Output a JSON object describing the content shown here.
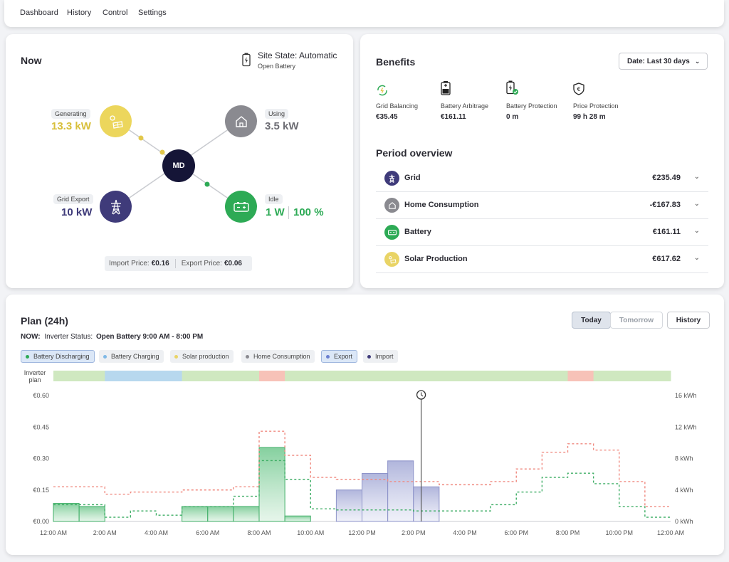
{
  "nav": {
    "items": [
      {
        "label": "Dashboard"
      },
      {
        "label": "History"
      },
      {
        "label": "Control"
      },
      {
        "label": "Settings"
      }
    ]
  },
  "now": {
    "title": "Now",
    "site_state": "Site State: Automatic",
    "site_state_sub": "Open Battery",
    "center_label": "MD",
    "generating": {
      "label": "Generating",
      "value": "13.3 kW",
      "color": "#d8bf3a"
    },
    "using": {
      "label": "Using",
      "value": "3.5 kW",
      "color": "#6d6d74"
    },
    "grid_export": {
      "label": "Grid Export",
      "value": "10 kW",
      "color": "#3f3b7a"
    },
    "idle": {
      "label": "Idle",
      "power": "1 W",
      "soc": "100 %",
      "color": "#2daa55"
    },
    "import_price_label": "Import Price:",
    "import_price": "€0.16",
    "export_price_label": "Export Price:",
    "export_price": "€0.06"
  },
  "benefits": {
    "title": "Benefits",
    "date_selector": "Date: Last 30 days",
    "items": [
      {
        "label": "Grid Balancing",
        "value": "€35.45",
        "icon": "grid-balancing-icon"
      },
      {
        "label": "Battery Arbitrage",
        "value": "€161.11",
        "icon": "battery-arbitrage-icon"
      },
      {
        "label": "Battery Protection",
        "value": "0 m",
        "icon": "battery-protection-icon"
      },
      {
        "label": "Price Protection",
        "value": "99 h 28 m",
        "icon": "price-protection-icon"
      }
    ],
    "period_title": "Period overview",
    "period_rows": [
      {
        "name": "Grid",
        "value": "€235.49",
        "color": "#3f3b7a"
      },
      {
        "name": "Home Consumption",
        "value": "-€167.83",
        "color": "#8a8a90"
      },
      {
        "name": "Battery",
        "value": "€161.11",
        "color": "#2daa55"
      },
      {
        "name": "Solar Production",
        "value": "€617.62",
        "color": "#e9d466"
      }
    ]
  },
  "plan": {
    "title": "Plan (24h)",
    "status_prefix": "NOW:",
    "status_label": "Inverter Status:",
    "status_value": "Open Battery 9:00 AM - 8:00 PM",
    "btn_today": "Today",
    "btn_tomorrow": "Tomorrow",
    "btn_history": "History",
    "legend": [
      {
        "label": "Battery Discharging",
        "color": "#2daa55",
        "active": true
      },
      {
        "label": "Battery Charging",
        "color": "#7fb9e6",
        "active": false
      },
      {
        "label": "Solar production",
        "color": "#e9d466",
        "active": false
      },
      {
        "label": "Home Consumption",
        "color": "#8a8a90",
        "active": false
      },
      {
        "label": "Export",
        "color": "#6a7fd0",
        "active": true
      },
      {
        "label": "Import",
        "color": "#3f3b7a",
        "active": false
      }
    ],
    "inverter_plan_label_1": "Inverter",
    "inverter_plan_label_2": "plan"
  },
  "chart_data": {
    "type": "bar",
    "x_ticks": [
      "12:00 AM",
      "2:00 AM",
      "4:00 AM",
      "6:00 AM",
      "8:00 AM",
      "10:00 AM",
      "12:00 PM",
      "2:00 PM",
      "4:00 PM",
      "6:00 PM",
      "8:00 PM",
      "10:00 PM",
      "12:00 AM"
    ],
    "y_left_ticks": [
      "€0.00",
      "€0.15",
      "€0.30",
      "€0.45",
      "€0.60"
    ],
    "y_right_ticks": [
      "0 kWh",
      "4 kWh",
      "8 kWh",
      "12 kWh",
      "16 kWh"
    ],
    "ylim_left": [
      0,
      0.6
    ],
    "ylim_right": [
      0,
      16
    ],
    "hours": [
      0,
      1,
      2,
      3,
      4,
      5,
      6,
      7,
      8,
      9,
      10,
      11,
      12,
      13,
      14,
      15,
      16,
      17,
      18,
      19,
      20,
      21,
      22,
      23
    ],
    "import_price": [
      0.165,
      0.165,
      0.13,
      0.14,
      0.14,
      0.15,
      0.15,
      0.165,
      0.43,
      0.315,
      0.21,
      0.2,
      0.2,
      0.19,
      0.19,
      0.175,
      0.175,
      0.19,
      0.25,
      0.33,
      0.37,
      0.34,
      0.19,
      0.07
    ],
    "export_price": [
      0.08,
      0.08,
      0.02,
      0.05,
      0.03,
      0.07,
      0.07,
      0.12,
      0.29,
      0.2,
      0.06,
      0.055,
      0.055,
      0.055,
      0.05,
      0.05,
      0.05,
      0.08,
      0.14,
      0.21,
      0.23,
      0.18,
      0.07,
      0.02
    ],
    "series": [
      {
        "name": "Battery Discharging",
        "unit": "kWh",
        "values": [
          2.3,
          1.9,
          0,
          0,
          0,
          1.9,
          1.9,
          1.9,
          9.4,
          0.7,
          0,
          0,
          0,
          0,
          0,
          0,
          0,
          0,
          0,
          0,
          0,
          0,
          0,
          0
        ]
      },
      {
        "name": "Export",
        "unit": "kWh",
        "values": [
          0,
          0,
          0,
          0,
          0,
          0,
          0,
          0,
          0,
          0,
          0,
          4.0,
          6.1,
          7.7,
          4.4,
          0,
          0,
          0,
          0,
          0,
          0,
          0,
          0,
          0
        ]
      }
    ],
    "inverter_plan": [
      "green",
      "green",
      "blue",
      "blue",
      "blue",
      "green",
      "green",
      "green",
      "red",
      "green",
      "green",
      "green",
      "green",
      "green",
      "green",
      "green",
      "green",
      "green",
      "green",
      "green",
      "red",
      "green",
      "green",
      "green"
    ],
    "now_marker_hour": 14.3
  }
}
